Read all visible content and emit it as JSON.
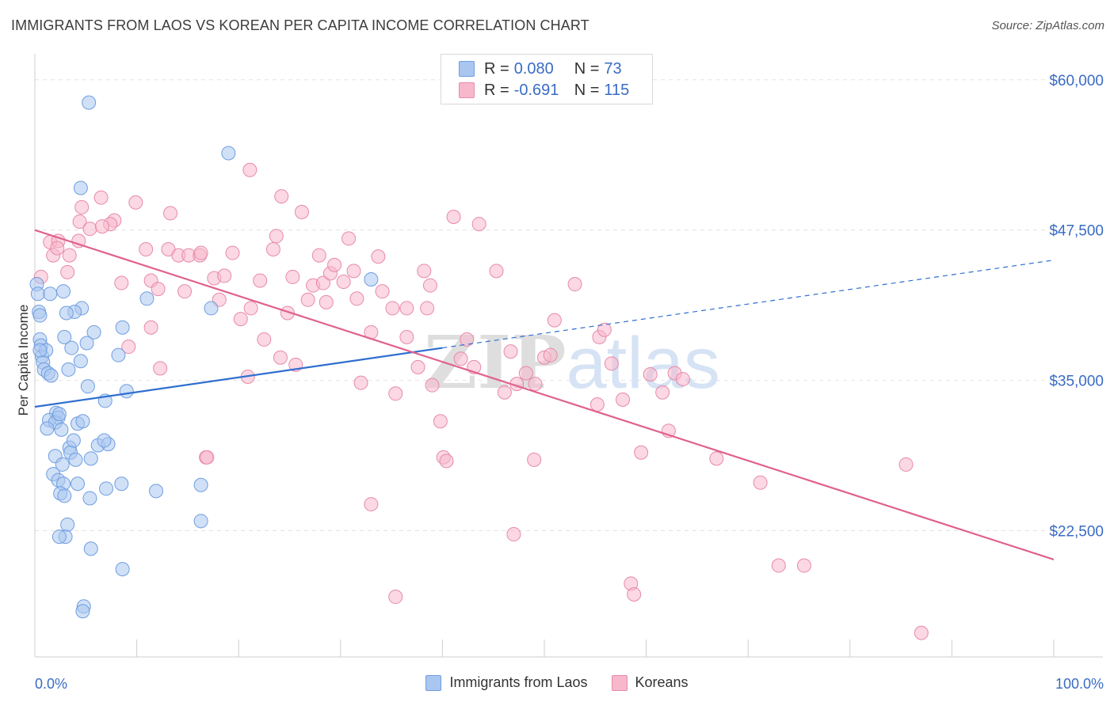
{
  "header": {
    "title": "IMMIGRANTS FROM LAOS VS KOREAN PER CAPITA INCOME CORRELATION CHART",
    "source": "Source: ZipAtlas.com"
  },
  "watermark": "ZIPatlas",
  "legend_top": [
    {
      "r_label": "R =",
      "r_value": "0.080",
      "n_label": "N =",
      "n_value": "73"
    },
    {
      "r_label": "R =",
      "r_value": "-0.691",
      "n_label": "N =",
      "n_value": "115"
    }
  ],
  "legend_bottom": [
    "Immigrants from Laos",
    "Koreans"
  ],
  "colors": {
    "blue_fill": "#a9c6f0",
    "blue_stroke": "#6f9ee0",
    "blue_line": "#2f6fd0",
    "pink_fill": "#f7b8cc",
    "pink_stroke": "#e88aa8",
    "pink_line": "#e0618f",
    "axis_label": "#3a6cc4",
    "grid": "#e3e3e3"
  },
  "chart_data": {
    "type": "scatter",
    "title": "IMMIGRANTS FROM LAOS VS KOREAN PER CAPITA INCOME CORRELATION CHART",
    "xlabel": "",
    "ylabel": "Per Capita Income",
    "xlim": [
      0,
      100
    ],
    "ylim": [
      12000,
      61500
    ],
    "x_tick_labels": [
      "0.0%",
      "100.0%"
    ],
    "y_ticks": [
      22500,
      35000,
      47500,
      60000
    ],
    "y_tick_labels": [
      "$22,500",
      "$35,000",
      "$47,500",
      "$60,000"
    ],
    "series": [
      {
        "name": "Immigrants from Laos",
        "color": "blue",
        "r": 0.08,
        "n": 73,
        "trend": {
          "x0": 0,
          "y0": 32800,
          "x1": 40,
          "y1": 37700,
          "dash_x1": 100,
          "dash_y1": 45000
        },
        "points": [
          [
            0.2,
            43000
          ],
          [
            0.3,
            42200
          ],
          [
            0.4,
            40700
          ],
          [
            0.5,
            38400
          ],
          [
            0.6,
            37900
          ],
          [
            0.7,
            37000
          ],
          [
            0.8,
            36500
          ],
          [
            0.9,
            35900
          ],
          [
            1.1,
            37500
          ],
          [
            1.3,
            35600
          ],
          [
            1.6,
            35400
          ],
          [
            2.1,
            32300
          ],
          [
            2.3,
            31900
          ],
          [
            1.4,
            31700
          ],
          [
            2.0,
            31500
          ],
          [
            1.2,
            31000
          ],
          [
            2.6,
            30900
          ],
          [
            2.4,
            32200
          ],
          [
            3.4,
            29400
          ],
          [
            2.0,
            28700
          ],
          [
            2.7,
            28000
          ],
          [
            1.8,
            27200
          ],
          [
            2.3,
            26700
          ],
          [
            2.8,
            26400
          ],
          [
            2.5,
            25600
          ],
          [
            2.9,
            25400
          ],
          [
            3.2,
            23000
          ],
          [
            3.0,
            22000
          ],
          [
            3.5,
            29000
          ],
          [
            4.0,
            28400
          ],
          [
            3.8,
            30000
          ],
          [
            4.2,
            31400
          ],
          [
            4.7,
            31600
          ],
          [
            4.2,
            26400
          ],
          [
            5.4,
            25200
          ],
          [
            6.2,
            29600
          ],
          [
            5.5,
            28500
          ],
          [
            7.2,
            29700
          ],
          [
            8.5,
            26400
          ],
          [
            8.2,
            37100
          ],
          [
            9.0,
            34100
          ],
          [
            8.6,
            39400
          ],
          [
            11.0,
            41800
          ],
          [
            6.9,
            33300
          ],
          [
            6.8,
            30000
          ],
          [
            7.0,
            26000
          ],
          [
            5.2,
            34500
          ],
          [
            5.8,
            39000
          ],
          [
            5.1,
            38100
          ],
          [
            4.6,
            41000
          ],
          [
            3.9,
            40700
          ],
          [
            4.5,
            36600
          ],
          [
            3.3,
            35900
          ],
          [
            3.6,
            37700
          ],
          [
            2.9,
            38600
          ],
          [
            2.8,
            42400
          ],
          [
            3.1,
            40600
          ],
          [
            1.5,
            42200
          ],
          [
            0.5,
            40400
          ],
          [
            0.5,
            37500
          ],
          [
            5.5,
            21000
          ],
          [
            8.6,
            19300
          ],
          [
            4.8,
            16200
          ],
          [
            4.7,
            15800
          ],
          [
            5.3,
            58100
          ],
          [
            19.0,
            53900
          ],
          [
            4.5,
            51000
          ],
          [
            17.3,
            41000
          ],
          [
            33.0,
            43400
          ],
          [
            16.3,
            23300
          ],
          [
            11.9,
            25800
          ],
          [
            16.3,
            26300
          ],
          [
            2.4,
            22000
          ]
        ]
      },
      {
        "name": "Koreans",
        "color": "pink",
        "r": -0.691,
        "n": 115,
        "trend": {
          "x0": 0,
          "y0": 47500,
          "x1": 100,
          "y1": 20100
        },
        "points": [
          [
            1.5,
            46500
          ],
          [
            2.3,
            46600
          ],
          [
            1.8,
            45400
          ],
          [
            0.6,
            43600
          ],
          [
            3.2,
            44000
          ],
          [
            4.4,
            48200
          ],
          [
            4.6,
            49400
          ],
          [
            6.5,
            50200
          ],
          [
            7.8,
            48300
          ],
          [
            7.4,
            48000
          ],
          [
            9.9,
            49800
          ],
          [
            10.9,
            45900
          ],
          [
            11.4,
            43300
          ],
          [
            12.1,
            42600
          ],
          [
            13.1,
            45900
          ],
          [
            14.1,
            45400
          ],
          [
            14.7,
            42400
          ],
          [
            15.1,
            45400
          ],
          [
            16.2,
            45400
          ],
          [
            16.3,
            45600
          ],
          [
            17.6,
            43500
          ],
          [
            18.1,
            41700
          ],
          [
            18.6,
            43700
          ],
          [
            19.4,
            45600
          ],
          [
            20.2,
            40100
          ],
          [
            20.9,
            35300
          ],
          [
            21.2,
            41000
          ],
          [
            22.5,
            38400
          ],
          [
            23.4,
            45900
          ],
          [
            23.7,
            47000
          ],
          [
            24.1,
            36900
          ],
          [
            24.2,
            50300
          ],
          [
            24.8,
            40600
          ],
          [
            25.6,
            36300
          ],
          [
            26.2,
            49000
          ],
          [
            26.8,
            41700
          ],
          [
            27.3,
            42900
          ],
          [
            27.9,
            45400
          ],
          [
            28.3,
            43100
          ],
          [
            28.6,
            41500
          ],
          [
            29.0,
            43900
          ],
          [
            29.4,
            44600
          ],
          [
            30.3,
            43200
          ],
          [
            30.8,
            46800
          ],
          [
            31.3,
            44100
          ],
          [
            32.0,
            34800
          ],
          [
            33.0,
            39000
          ],
          [
            33.7,
            45300
          ],
          [
            34.1,
            42400
          ],
          [
            35.1,
            41000
          ],
          [
            35.4,
            33900
          ],
          [
            36.5,
            38600
          ],
          [
            37.6,
            36100
          ],
          [
            38.2,
            44100
          ],
          [
            39.0,
            34600
          ],
          [
            38.8,
            42900
          ],
          [
            38.5,
            41000
          ],
          [
            39.8,
            31600
          ],
          [
            40.1,
            28600
          ],
          [
            40.4,
            28300
          ],
          [
            41.1,
            48600
          ],
          [
            41.8,
            36800
          ],
          [
            42.4,
            38400
          ],
          [
            43.1,
            36100
          ],
          [
            43.6,
            48000
          ],
          [
            45.3,
            44100
          ],
          [
            46.1,
            34000
          ],
          [
            46.7,
            37400
          ],
          [
            47.3,
            34700
          ],
          [
            48.2,
            35600
          ],
          [
            49.1,
            34700
          ],
          [
            49.0,
            28400
          ],
          [
            50.0,
            36900
          ],
          [
            50.6,
            37100
          ],
          [
            51.0,
            40000
          ],
          [
            53.0,
            43000
          ],
          [
            55.2,
            33000
          ],
          [
            55.4,
            38600
          ],
          [
            55.9,
            39200
          ],
          [
            56.6,
            36400
          ],
          [
            57.7,
            33400
          ],
          [
            59.5,
            29000
          ],
          [
            60.4,
            35500
          ],
          [
            61.6,
            34000
          ],
          [
            62.2,
            30800
          ],
          [
            62.8,
            35600
          ],
          [
            63.6,
            35100
          ],
          [
            66.9,
            28500
          ],
          [
            71.2,
            26500
          ],
          [
            73.0,
            19600
          ],
          [
            75.5,
            19600
          ],
          [
            85.5,
            28000
          ],
          [
            87.0,
            14000
          ],
          [
            58.5,
            18100
          ],
          [
            58.8,
            17200
          ],
          [
            35.4,
            17000
          ],
          [
            33.0,
            24700
          ],
          [
            47.0,
            22200
          ],
          [
            16.8,
            28600
          ],
          [
            16.9,
            28600
          ],
          [
            8.5,
            43100
          ],
          [
            9.2,
            37800
          ],
          [
            11.4,
            39400
          ],
          [
            12.3,
            36000
          ],
          [
            5.4,
            47600
          ],
          [
            4.3,
            46600
          ],
          [
            2.2,
            46000
          ],
          [
            3.4,
            45400
          ],
          [
            6.6,
            47800
          ],
          [
            21.1,
            52500
          ],
          [
            13.3,
            48900
          ],
          [
            22.1,
            43300
          ],
          [
            25.3,
            43600
          ],
          [
            31.6,
            41800
          ],
          [
            36.5,
            41000
          ]
        ]
      }
    ]
  }
}
